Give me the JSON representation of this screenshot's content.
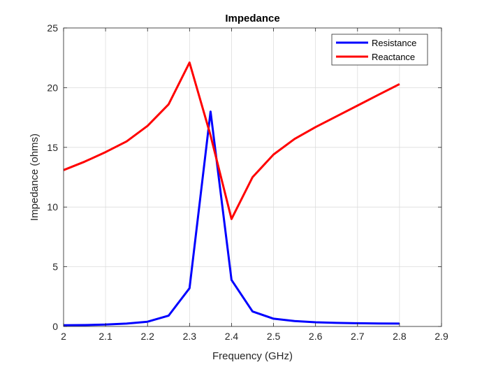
{
  "chart_data": {
    "type": "line",
    "title": "Impedance",
    "xlabel": "Frequency (GHz)",
    "ylabel": "Impedance (ohms)",
    "xlim": [
      2,
      2.9
    ],
    "ylim": [
      0,
      25
    ],
    "xticks": [
      2,
      2.1,
      2.2,
      2.3,
      2.4,
      2.5,
      2.6,
      2.7,
      2.8,
      2.9
    ],
    "xtick_labels": [
      "2",
      "2.1",
      "2.2",
      "2.3",
      "2.4",
      "2.5",
      "2.6",
      "2.7",
      "2.8",
      "2.9"
    ],
    "yticks": [
      0,
      5,
      10,
      15,
      20,
      25
    ],
    "ytick_labels": [
      "0",
      "5",
      "10",
      "15",
      "20",
      "25"
    ],
    "grid": true,
    "legend_position": "top-right",
    "x": [
      2.0,
      2.05,
      2.1,
      2.15,
      2.2,
      2.25,
      2.3,
      2.35,
      2.4,
      2.45,
      2.5,
      2.55,
      2.6,
      2.65,
      2.7,
      2.75,
      2.8
    ],
    "series": [
      {
        "name": "Resistance",
        "color": "#0000ff",
        "values": [
          0.1,
          0.12,
          0.16,
          0.24,
          0.4,
          0.9,
          3.2,
          18.0,
          3.9,
          1.25,
          0.65,
          0.45,
          0.35,
          0.3,
          0.27,
          0.25,
          0.24
        ]
      },
      {
        "name": "Reactance",
        "color": "#ff0000",
        "values": [
          13.1,
          13.8,
          14.6,
          15.5,
          16.8,
          18.6,
          22.1,
          16.0,
          9.0,
          12.5,
          14.4,
          15.7,
          16.7,
          17.6,
          18.5,
          19.4,
          20.3
        ]
      }
    ]
  }
}
